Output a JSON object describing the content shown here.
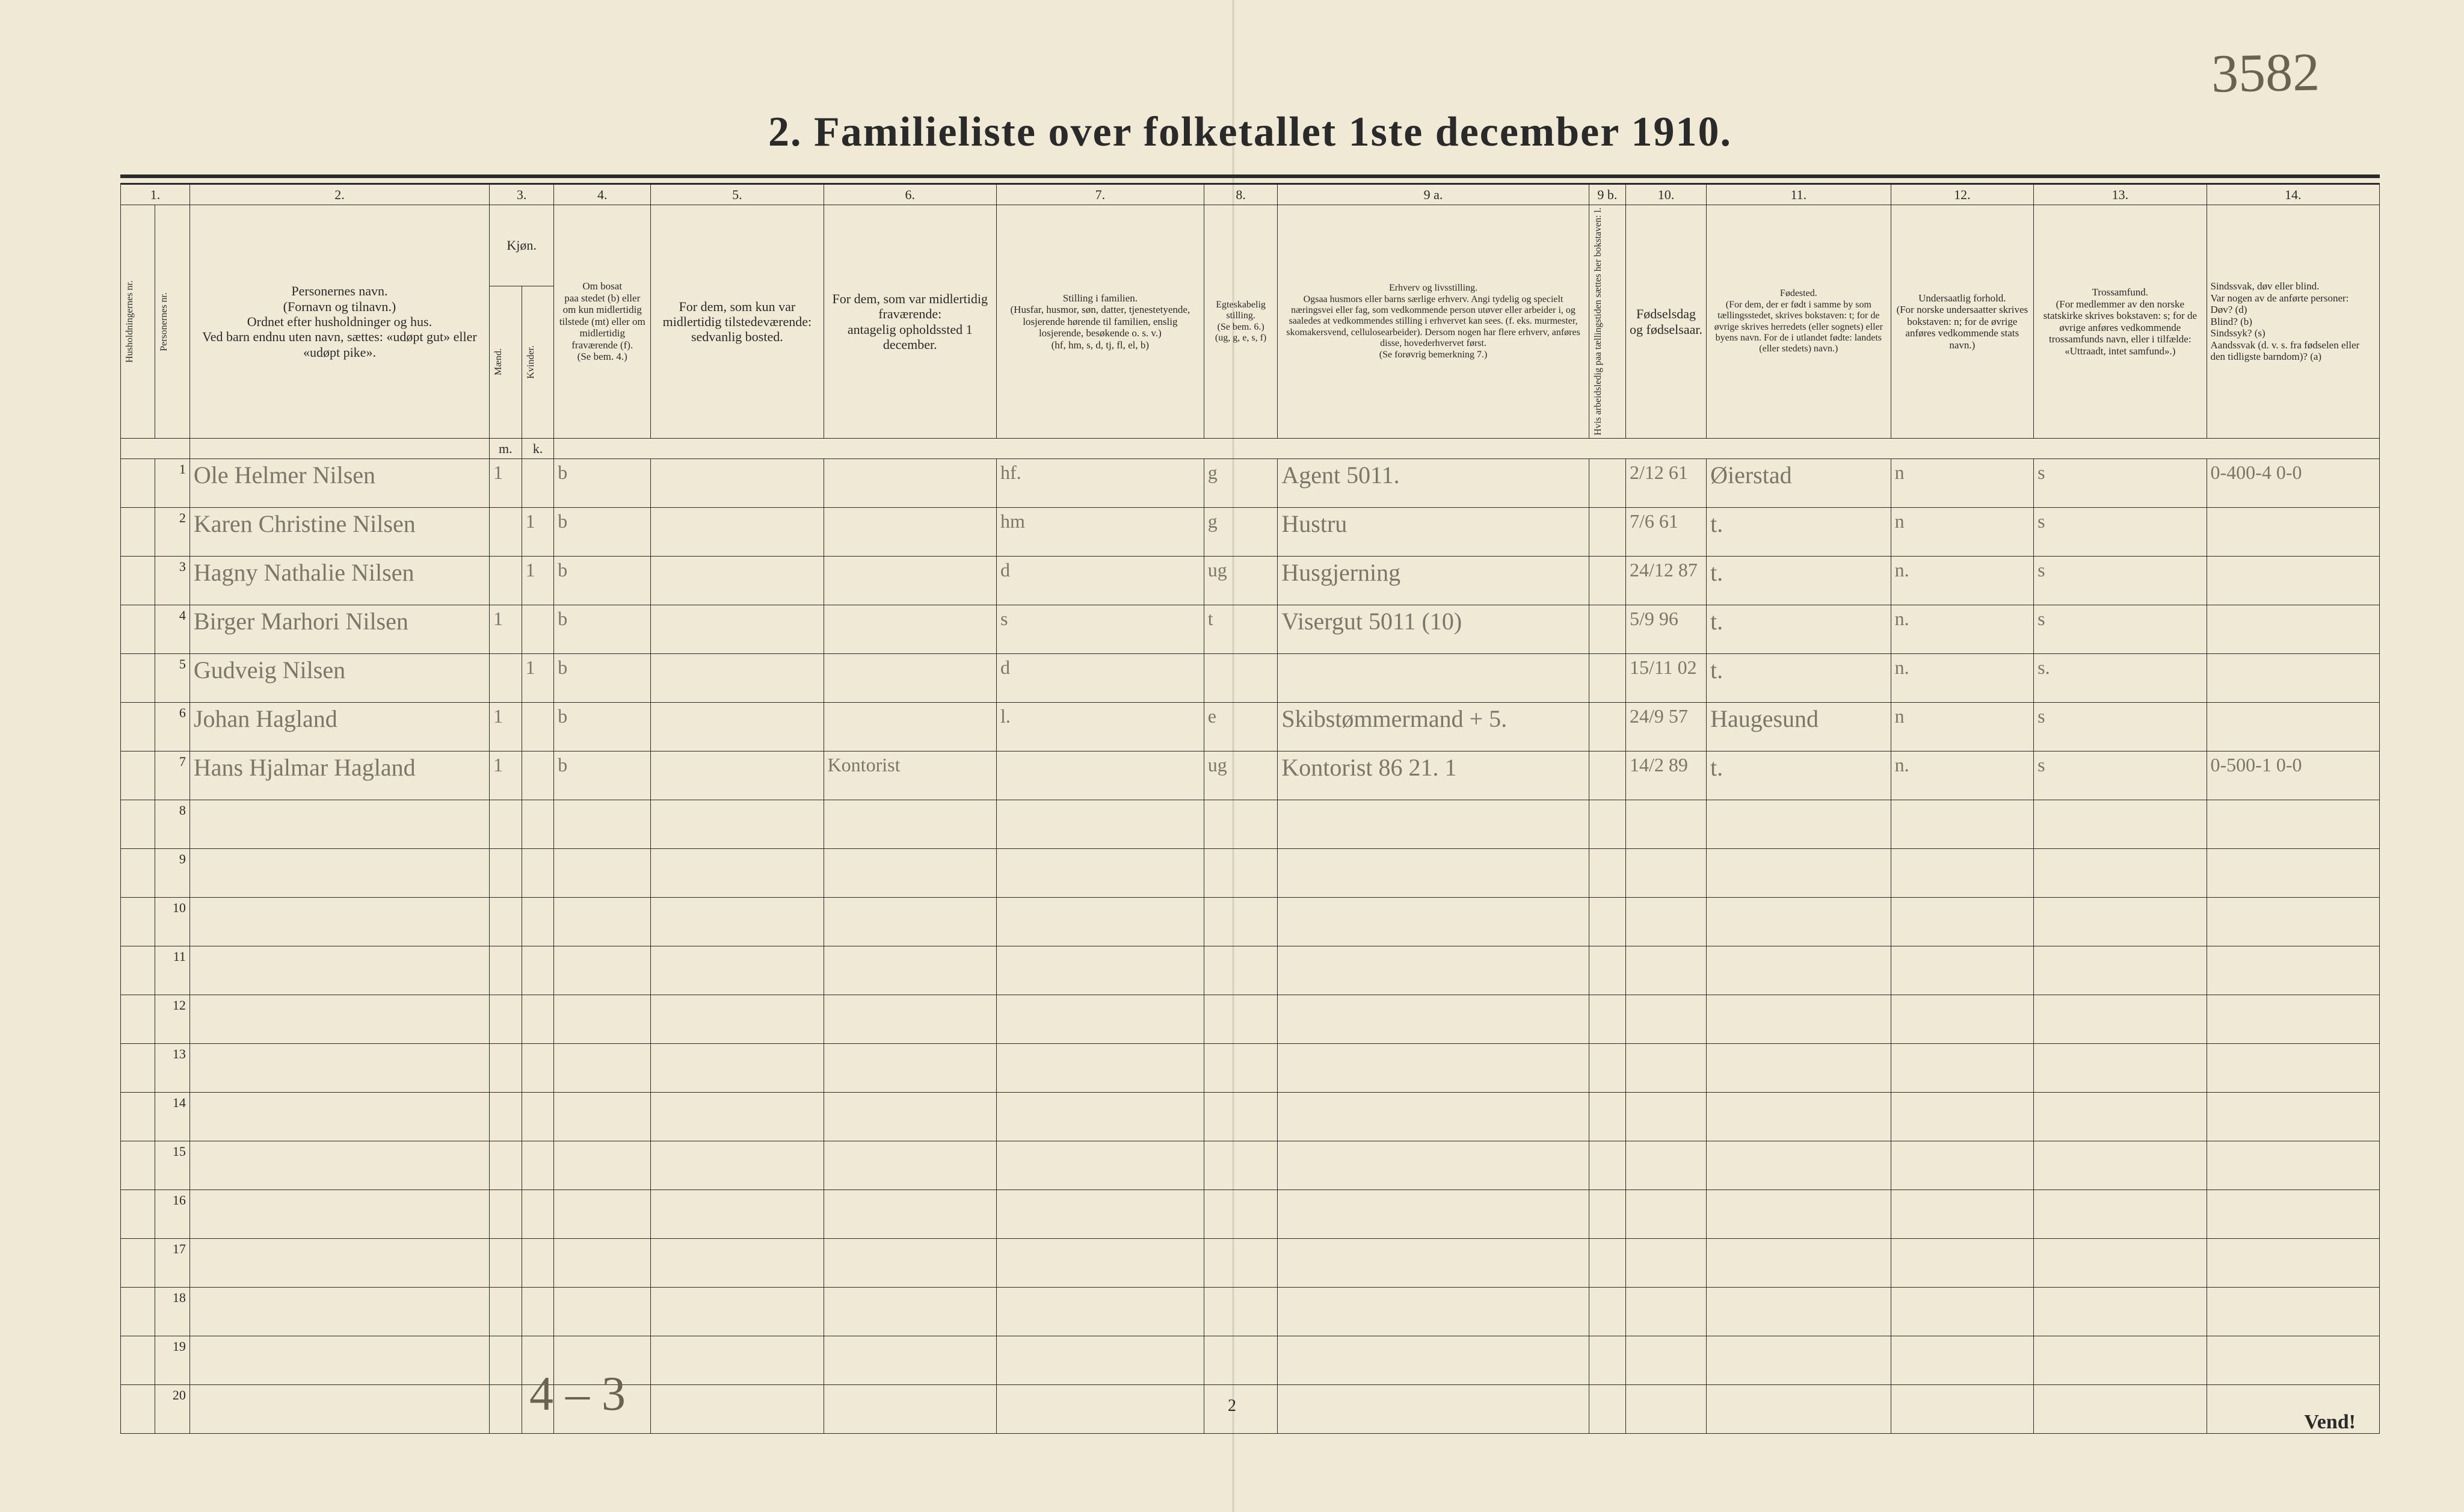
{
  "corner_note": "3582",
  "title": "2.   Familieliste over folketallet 1ste december 1910.",
  "bottom_note": "4 – 3",
  "page_num": "2",
  "vend": "Vend!",
  "colnums": [
    "1.",
    "2.",
    "3.",
    "4.",
    "5.",
    "6.",
    "7.",
    "8.",
    "9 a.",
    "9 b.",
    "10.",
    "11.",
    "12.",
    "13.",
    "14."
  ],
  "head": {
    "c1a": "Husholdningernes nr.",
    "c1b": "Personernes nr.",
    "c2": "Personernes navn.\n(Fornavn og tilnavn.)\nOrdnet efter husholdninger og hus.\nVed barn endnu uten navn, sættes: «udøpt gut» eller «udøpt pike».",
    "c3": "Kjøn.",
    "c3sub": "Kvinder.",
    "c3m": "Mænd.",
    "c3mk": "m.",
    "c3kk": "k.",
    "c4": "Om bosat\npaa stedet (b) eller om kun midlertidig tilstede (mt) eller om midlertidig fraværende (f).\n(Se bem. 4.)",
    "c5": "For dem, som kun var midlertidig tilstedeværende:\nsedvanlig bosted.",
    "c6": "For dem, som var midlertidig fraværende:\nantagelig opholdssted 1 december.",
    "c7": "Stilling i familien.\n(Husfar, husmor, søn, datter, tjenestetyende, losjerende hørende til familien, enslig losjerende, besøkende o. s. v.)\n(hf, hm, s, d, tj, fl, el, b)",
    "c8": "Egteskabelig stilling.\n(Se bem. 6.)\n(ug, g, e, s, f)",
    "c9a": "Erhverv og livsstilling.\nOgsaa husmors eller barns særlige erhverv. Angi tydelig og specielt næringsvei eller fag, som vedkommende person utøver eller arbeider i, og saaledes at vedkommendes stilling i erhvervet kan sees. (f. eks. murmester, skomakersvend, cellulosearbeider). Dersom nogen har flere erhverv, anføres disse, hovederhvervet først.\n(Se forøvrig bemerkning 7.)",
    "c9b": "Hvis arbeidsledig paa tællingstiden sættes her bokstaven: l.",
    "c10": "Fødselsdag og fødselsaar.",
    "c11": "Fødested.\n(For dem, der er født i samme by som tællingsstedet, skrives bokstaven: t; for de øvrige skrives herredets (eller sognets) eller byens navn. For de i utlandet fødte: landets (eller stedets) navn.)",
    "c12": "Undersaatlig forhold.\n(For norske undersaatter skrives bokstaven: n; for de øvrige anføres vedkommende stats navn.)",
    "c13": "Trossamfund.\n(For medlemmer av den norske statskirke skrives bokstaven: s; for de øvrige anføres vedkommende trossamfunds navn, eller i tilfælde: «Uttraadt, intet samfund».)",
    "c14": "Sindssvak, døv eller blind.\nVar nogen av de anførte personer:\nDøv?  (d)\nBlind?  (b)\nSindssyk?  (s)\nAandssvak (d. v. s. fra fødselen eller den tidligste barndom)?  (a)"
  },
  "rows": [
    {
      "n": "1",
      "name": "Ole Helmer Nilsen",
      "m": "1",
      "k": "",
      "b": "b",
      "c5": "",
      "c6": "",
      "c7": "hf.",
      "c8": "g",
      "c9": "Agent   5011.",
      "c10": "2/12 61",
      "c11": "Øierstad",
      "c12": "n",
      "c13": "s",
      "c14": "0-400-4  0-0"
    },
    {
      "n": "2",
      "name": "Karen Christine Nilsen",
      "m": "",
      "k": "1",
      "b": "b",
      "c5": "",
      "c6": "",
      "c7": "hm",
      "c8": "g",
      "c9": "Hustru",
      "c10": "7/6 61",
      "c11": "t.",
      "c12": "n",
      "c13": "s",
      "c14": ""
    },
    {
      "n": "3",
      "name": "Hagny Nathalie Nilsen",
      "m": "",
      "k": "1",
      "b": "b",
      "c5": "",
      "c6": "",
      "c7": "d",
      "c8": "ug",
      "c9": "Husgjerning",
      "c10": "24/12 87",
      "c11": "t.",
      "c12": "n.",
      "c13": "s",
      "c14": ""
    },
    {
      "n": "4",
      "name": "Birger Marhori Nilsen",
      "m": "1",
      "k": "",
      "b": "b",
      "c5": "",
      "c6": "",
      "c7": "s",
      "c8": "t",
      "c9": "Visergut 5011 (10)",
      "c10": "5/9 96",
      "c11": "t.",
      "c12": "n.",
      "c13": "s",
      "c14": ""
    },
    {
      "n": "5",
      "name": "Gudveig Nilsen",
      "m": "",
      "k": "1",
      "b": "b",
      "c5": "",
      "c6": "",
      "c7": "d",
      "c8": "",
      "c9": "",
      "c10": "15/11 02",
      "c11": "t.",
      "c12": "n.",
      "c13": "s.",
      "c14": ""
    },
    {
      "n": "6",
      "name": "Johan Hagland",
      "m": "1",
      "k": "",
      "b": "b",
      "c5": "",
      "c6": "",
      "c7": "l.",
      "c8": "e",
      "c9": "Skibstømmermand + 5.",
      "c10": "24/9 57",
      "c11": "Haugesund",
      "c12": "n",
      "c13": "s",
      "c14": ""
    },
    {
      "n": "7",
      "name": "Hans Hjalmar Hagland",
      "m": "1",
      "k": "",
      "b": "b",
      "c5": "",
      "c6": "Kontorist",
      "c7": "",
      "c8": "ug",
      "c9": "Kontorist 86 21. 1",
      "c10": "14/2 89",
      "c11": "t.",
      "c12": "n.",
      "c13": "s",
      "c14": "0-500-1  0-0"
    },
    {
      "n": "8"
    },
    {
      "n": "9"
    },
    {
      "n": "10"
    },
    {
      "n": "11"
    },
    {
      "n": "12"
    },
    {
      "n": "13"
    },
    {
      "n": "14"
    },
    {
      "n": "15"
    },
    {
      "n": "16"
    },
    {
      "n": "17"
    },
    {
      "n": "18"
    },
    {
      "n": "19"
    },
    {
      "n": "20"
    }
  ]
}
